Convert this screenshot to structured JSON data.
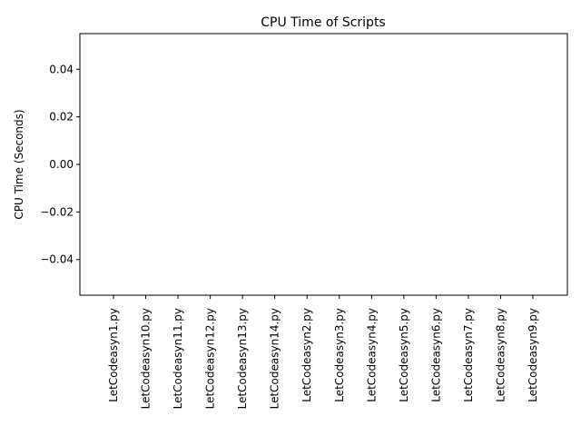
{
  "chart_data": {
    "type": "bar",
    "title": "CPU Time of Scripts",
    "xlabel": "",
    "ylabel": "CPU Time (Seconds)",
    "categories": [
      "LetCodeasyn1.py",
      "LetCodeasyn10.py",
      "LetCodeasyn11.py",
      "LetCodeasyn12.py",
      "LetCodeasyn13.py",
      "LetCodeasyn14.py",
      "LetCodeasyn2.py",
      "LetCodeasyn3.py",
      "LetCodeasyn4.py",
      "LetCodeasyn5.py",
      "LetCodeasyn6.py",
      "LetCodeasyn7.py",
      "LetCodeasyn8.py",
      "LetCodeasyn9.py"
    ],
    "values": [
      0,
      0,
      0,
      0,
      0,
      0,
      0,
      0,
      0,
      0,
      0,
      0,
      0,
      0
    ],
    "ylim": [
      -0.055,
      0.055
    ],
    "yticks": [
      -0.04,
      -0.02,
      0.0,
      0.02,
      0.04
    ],
    "ytick_labels": [
      "−0.04",
      "−0.02",
      "0.00",
      "0.02",
      "0.04"
    ],
    "grid": false,
    "bar_color": "#1f77b4"
  }
}
